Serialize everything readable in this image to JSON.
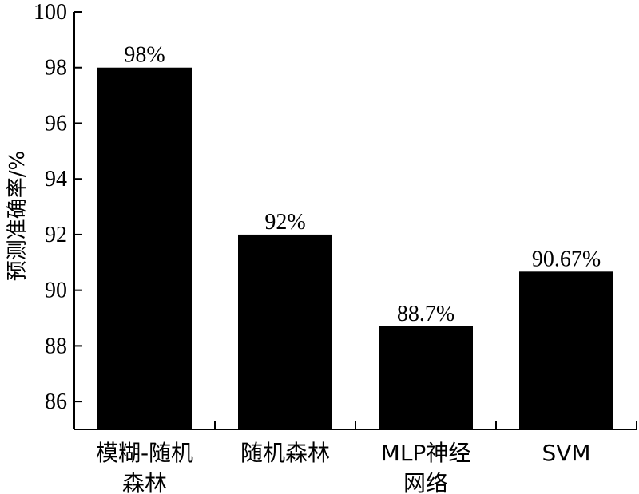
{
  "chart_data": {
    "type": "bar",
    "title": "",
    "xlabel": "",
    "ylabel": "预测准确率/%",
    "ylim": [
      85,
      100
    ],
    "yticks": [
      86,
      88,
      90,
      92,
      94,
      96,
      98,
      100
    ],
    "grid": false,
    "categories": [
      [
        "模糊-随机",
        "森林"
      ],
      [
        "随机森林"
      ],
      [
        "MLP神经",
        "网络"
      ],
      [
        "SVM"
      ]
    ],
    "values": [
      98,
      92,
      88.7,
      90.67
    ],
    "data_labels": [
      "98%",
      "92%",
      "88.7%",
      "90.67%"
    ],
    "bar_color": "#000000"
  }
}
